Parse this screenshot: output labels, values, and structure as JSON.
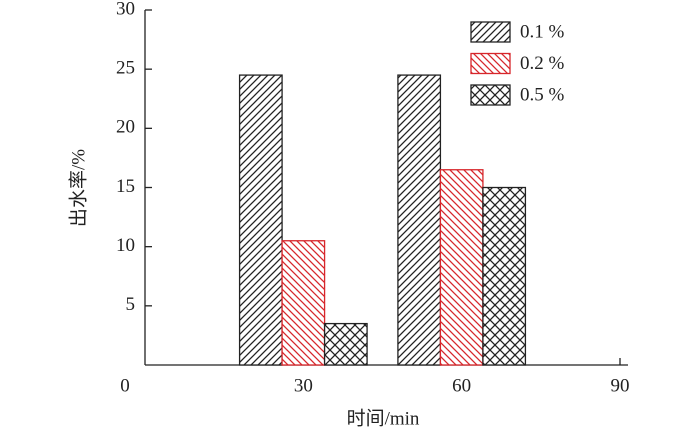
{
  "chart_data": {
    "type": "bar",
    "x_label": "时间/min",
    "y_label": "出水率/%",
    "x": [
      30,
      60
    ],
    "series": [
      {
        "name": "0.1 %",
        "color": "#222222",
        "hatch": "////",
        "values": [
          24.5,
          24.5
        ]
      },
      {
        "name": "0.2 %",
        "color": "#d7262b",
        "hatch": "\\\\\\\\",
        "values": [
          10.5,
          16.5
        ]
      },
      {
        "name": "0.5 %",
        "color": "#222222",
        "hatch": "xxxx",
        "values": [
          3.5,
          15
        ]
      }
    ],
    "xlim": [
      0,
      90
    ],
    "xticks": [
      0,
      30,
      60,
      90
    ],
    "ylim": [
      0,
      30
    ],
    "yticks": [
      5,
      10,
      15,
      20,
      25,
      30
    ],
    "grid": false,
    "legend": "upper right"
  }
}
